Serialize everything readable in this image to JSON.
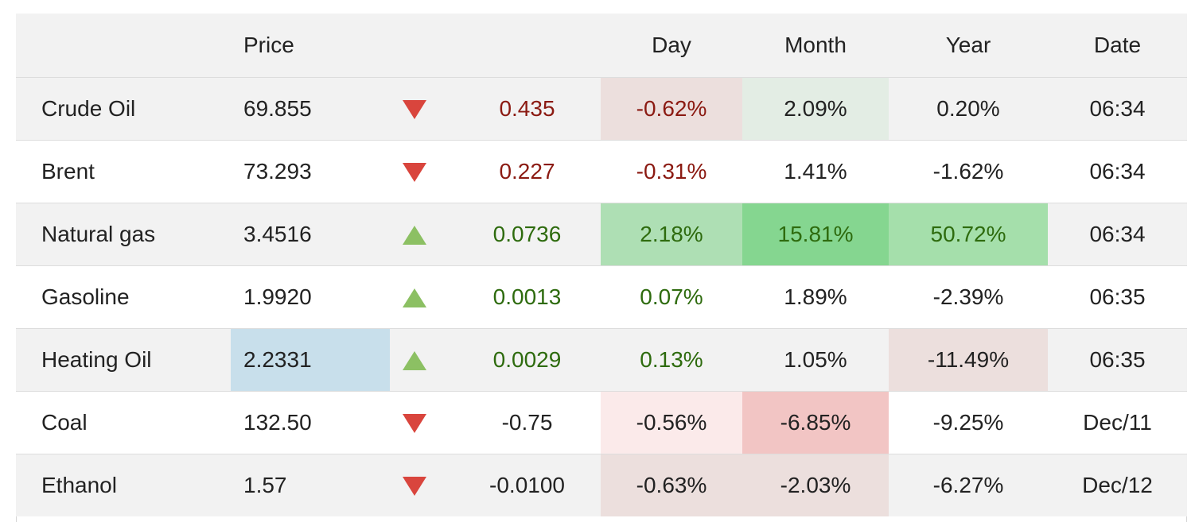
{
  "colors": {
    "header_bg": "#f2f2f2",
    "row_odd_bg": "#f2f2f2",
    "row_even_bg": "#ffffff",
    "negative_text": "#8b1a12",
    "positive_text": "#2e6b0e",
    "down_arrow": "#d9453d",
    "up_arrow": "#8cc063"
  },
  "headers": {
    "name": "",
    "price": "Price",
    "arrow": "",
    "change": "",
    "day": "Day",
    "month": "Month",
    "year": "Year",
    "date": "Date"
  },
  "rows": [
    {
      "name": "Crude Oil",
      "price": "69.855",
      "direction": "down-arrow-icon",
      "change": "0.435",
      "day": "-0.62%",
      "month": "2.09%",
      "year": "0.20%",
      "date": "06:34"
    },
    {
      "name": "Brent",
      "price": "73.293",
      "direction": "down-arrow-icon",
      "change": "0.227",
      "day": "-0.31%",
      "month": "1.41%",
      "year": "-1.62%",
      "date": "06:34"
    },
    {
      "name": "Natural gas",
      "price": "3.4516",
      "direction": "up-arrow-icon",
      "change": "0.0736",
      "day": "2.18%",
      "month": "15.81%",
      "year": "50.72%",
      "date": "06:34"
    },
    {
      "name": "Gasoline",
      "price": "1.9920",
      "direction": "up-arrow-icon",
      "change": "0.0013",
      "day": "0.07%",
      "month": "1.89%",
      "year": "-2.39%",
      "date": "06:35"
    },
    {
      "name": "Heating Oil",
      "price": "2.2331",
      "direction": "up-arrow-icon",
      "change": "0.0029",
      "day": "0.13%",
      "month": "1.05%",
      "year": "-11.49%",
      "date": "06:35"
    },
    {
      "name": "Coal",
      "price": "132.50",
      "direction": "down-arrow-icon",
      "change": "-0.75",
      "day": "-0.56%",
      "month": "-6.85%",
      "year": "-9.25%",
      "date": "Dec/11"
    },
    {
      "name": "Ethanol",
      "price": "1.57",
      "direction": "down-arrow-icon",
      "change": "-0.0100",
      "day": "-0.63%",
      "month": "-2.03%",
      "year": "-6.27%",
      "date": "Dec/12"
    }
  ]
}
